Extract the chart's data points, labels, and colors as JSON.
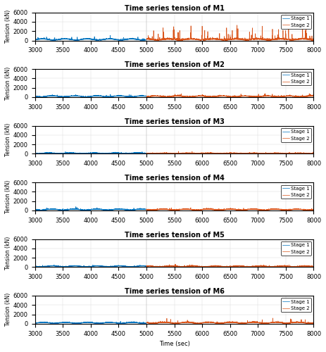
{
  "titles": [
    "Time series tension of M1",
    "Time series tension of M2",
    "Time series tension of M3",
    "Time series tension of M4",
    "Time series tension of M5",
    "Time series tension of M6"
  ],
  "ylabel": "Tension (kN)",
  "xlabel": "Time (sec)",
  "xlim": [
    3000,
    8000
  ],
  "ylim": [
    0,
    6000
  ],
  "yticks": [
    0,
    2000,
    4000,
    6000
  ],
  "xticks": [
    3000,
    3500,
    4000,
    4500,
    5000,
    5500,
    6000,
    6500,
    7000,
    7500,
    8000
  ],
  "stage1_color": "#0072BD",
  "stage2_color": "#D95319",
  "stage1_label": "Stage 1",
  "stage2_label": "Stage 2",
  "seed": 42,
  "n_panels": 6,
  "figsize": [
    4.63,
    5.0
  ],
  "dpi": 100
}
